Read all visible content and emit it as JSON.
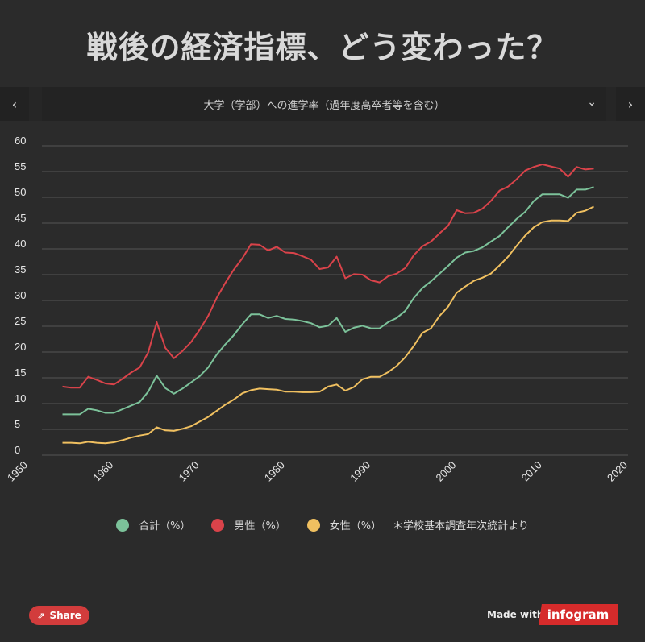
{
  "page": {
    "title": "戦後の経済指標、どう変わった？",
    "selector_label": "大学（学部）への進学率（過年度高卒者等を含む）",
    "prev_label": "‹",
    "next_label": "›",
    "chevron": "⌄"
  },
  "legend": {
    "total": "合計（%）",
    "male": "男性（%）",
    "female": "女性（%）",
    "note": "＊学校基本調査年次統計より"
  },
  "footer": {
    "share_label": "Share",
    "made_with": "Made with",
    "brand": "infogram"
  },
  "colors": {
    "total": "#7cc29a",
    "male": "#d9434a",
    "female": "#f0c060",
    "grid": "#555555",
    "background": "#2b2b2b"
  },
  "chart_data": {
    "type": "line",
    "title": "大学（学部）への進学率（過年度高卒者等を含む）",
    "xlim": [
      1950,
      2020
    ],
    "ylim": [
      0,
      60
    ],
    "xticks": [
      1950,
      1960,
      1970,
      1980,
      1990,
      2000,
      2010,
      2020
    ],
    "yticks": [
      0,
      5,
      10,
      15,
      20,
      25,
      30,
      35,
      40,
      45,
      50,
      55,
      60
    ],
    "grid": true,
    "legend_position": "bottom",
    "x": [
      1954,
      1955,
      1956,
      1957,
      1958,
      1959,
      1960,
      1961,
      1962,
      1963,
      1964,
      1965,
      1966,
      1967,
      1968,
      1969,
      1970,
      1971,
      1972,
      1973,
      1974,
      1975,
      1976,
      1977,
      1978,
      1979,
      1980,
      1981,
      1982,
      1983,
      1984,
      1985,
      1986,
      1987,
      1988,
      1989,
      1990,
      1991,
      1992,
      1993,
      1994,
      1995,
      1996,
      1997,
      1998,
      1999,
      2000,
      2001,
      2002,
      2003,
      2004,
      2005,
      2006,
      2007,
      2008,
      2009,
      2010,
      2011,
      2012,
      2013,
      2014,
      2015,
      2016
    ],
    "series": [
      {
        "name": "合計（%）",
        "color": "#7cc29a",
        "values": [
          7.9,
          7.9,
          7.9,
          9.0,
          8.7,
          8.2,
          8.2,
          8.9,
          9.6,
          10.3,
          12.3,
          15.4,
          13.0,
          11.9,
          12.9,
          14.1,
          15.3,
          17.0,
          19.5,
          21.5,
          23.3,
          25.4,
          27.3,
          27.3,
          26.6,
          27.0,
          26.4,
          26.3,
          26.0,
          25.6,
          24.8,
          25.1,
          26.6,
          23.9,
          24.7,
          25.1,
          24.6,
          24.6,
          25.8,
          26.6,
          28.0,
          30.5,
          32.4,
          33.7,
          35.2,
          36.7,
          38.3,
          39.3,
          39.6,
          40.3,
          41.4,
          42.5,
          44.2,
          45.8,
          47.2,
          49.3,
          50.6,
          50.6,
          50.6,
          49.9,
          51.5,
          51.5,
          52.0
        ]
      },
      {
        "name": "男性（%）",
        "color": "#d9434a",
        "values": [
          13.3,
          13.1,
          13.1,
          15.2,
          14.6,
          13.9,
          13.7,
          14.8,
          16.0,
          17.0,
          19.9,
          25.8,
          20.8,
          18.8,
          20.2,
          21.9,
          24.3,
          27.0,
          30.5,
          33.4,
          36.0,
          38.2,
          40.9,
          40.8,
          39.7,
          40.4,
          39.3,
          39.2,
          38.6,
          37.9,
          36.1,
          36.4,
          38.5,
          34.3,
          35.1,
          35.0,
          33.9,
          33.5,
          34.7,
          35.2,
          36.3,
          38.8,
          40.5,
          41.4,
          43.0,
          44.5,
          47.5,
          46.9,
          47.0,
          47.8,
          49.3,
          51.3,
          52.1,
          53.5,
          55.2,
          55.9,
          56.4,
          56.0,
          55.6,
          54.0,
          55.9,
          55.4,
          55.6
        ]
      },
      {
        "name": "女性（%）",
        "color": "#f0c060",
        "values": [
          2.4,
          2.4,
          2.3,
          2.6,
          2.4,
          2.3,
          2.5,
          2.9,
          3.4,
          3.8,
          4.1,
          5.4,
          4.8,
          4.7,
          5.1,
          5.6,
          6.5,
          7.4,
          8.6,
          9.8,
          10.8,
          12.0,
          12.6,
          12.9,
          12.8,
          12.7,
          12.3,
          12.3,
          12.2,
          12.2,
          12.3,
          13.3,
          13.7,
          12.5,
          13.2,
          14.7,
          15.2,
          15.2,
          16.1,
          17.3,
          19.0,
          21.2,
          23.7,
          24.6,
          27.0,
          28.8,
          31.5,
          32.7,
          33.8,
          34.4,
          35.2,
          36.8,
          38.5,
          40.6,
          42.6,
          44.2,
          45.2,
          45.5,
          45.5,
          45.4,
          47.0,
          47.4,
          48.2
        ]
      }
    ]
  }
}
